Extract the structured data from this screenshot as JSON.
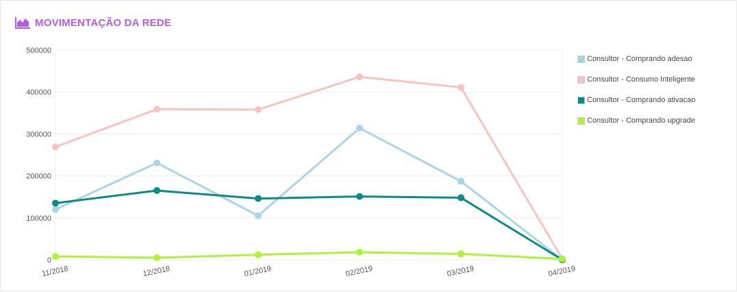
{
  "header": {
    "title": "MOVIMENTAÇÃO DA REDE",
    "icon": "area-chart-icon",
    "accent": "#b25de0"
  },
  "chart_data": {
    "type": "line",
    "categories": [
      "11/2018",
      "12/2018",
      "01/2019",
      "02/2019",
      "03/2019",
      "04/2019"
    ],
    "ylim": [
      0,
      500000
    ],
    "yticks": [
      "0",
      "100000",
      "200000",
      "300000",
      "400000",
      "500000"
    ],
    "grid": true,
    "legend_position": "right",
    "series": [
      {
        "name": "Consultor - Comprando adesao",
        "color": "#acd4e8",
        "values": [
          120000,
          231000,
          105000,
          314000,
          187000,
          0
        ]
      },
      {
        "name": "Consultor - Consumo Inteligente",
        "color": "#f7c3c0",
        "values": [
          269000,
          359000,
          358000,
          436000,
          411000,
          2000
        ]
      },
      {
        "name": "Consultor - Comprando ativacao",
        "color": "#0b8a86",
        "values": [
          135000,
          165000,
          146000,
          151000,
          148000,
          0
        ]
      },
      {
        "name": "Consultor - Comprando upgrade",
        "color": "#aef23a",
        "values": [
          8000,
          5000,
          12000,
          18000,
          14000,
          2000
        ]
      }
    ]
  }
}
